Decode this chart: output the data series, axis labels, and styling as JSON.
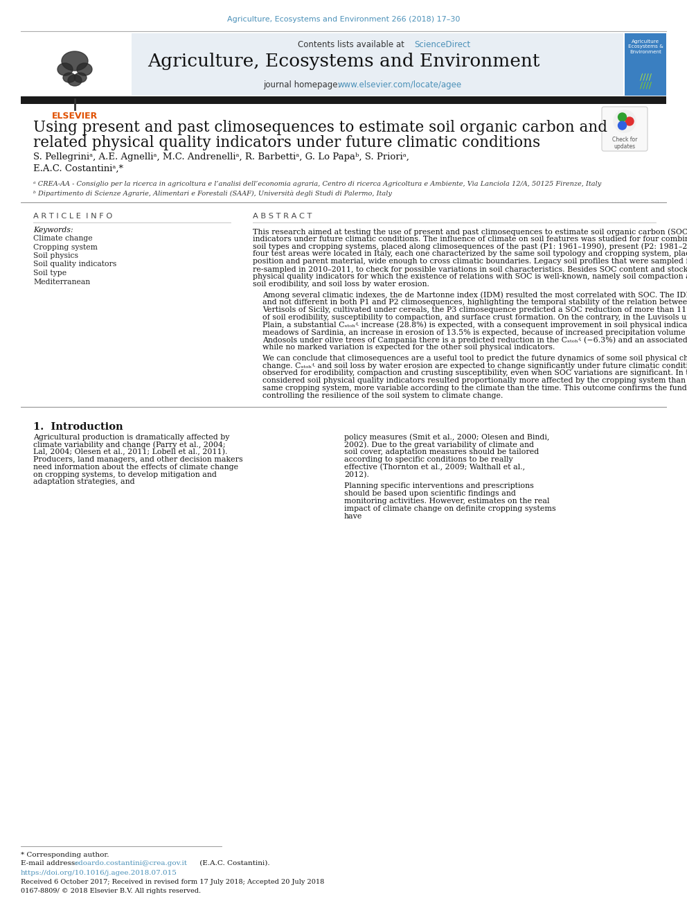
{
  "journal_ref": "Agriculture, Ecosystems and Environment 266 (2018) 17–30",
  "journal_title": "Agriculture, Ecosystems and Environment",
  "contents_text": "Contents lists available at",
  "sciencedirect_text": "ScienceDirect",
  "homepage_text": "journal homepage:",
  "homepage_url": "www.elsevier.com/locate/agee",
  "paper_title_line1": "Using present and past climosequences to estimate soil organic carbon and",
  "paper_title_line2": "related physical quality indicators under future climatic conditions",
  "authors": "S. Pellegriniᵃ, A.E. Agnelliᵃ, M.C. Andrenelliᵃ, R. Barbettiᵃ, G. Lo Papaᵇ, S. Prioriᵃ,",
  "authors2": "E.A.C. Costantiniᵃ,*",
  "affil_a": "ᵃ CREA-AA - Consiglio per la ricerca in agricoltura e l’analisi dell’economia agraria, Centro di ricerca Agricoltura e Ambiente, Via Lanciola 12/A, 50125 Firenze, Italy",
  "affil_b": "ᵇ Dipartimento di Scienze Agrarie, Alimentari e Forestali (SAAF), Università degli Studi di Palermo, Italy",
  "article_info_title": "A R T I C L E  I N F O",
  "keywords_label": "Keywords:",
  "keywords": [
    "Climate change",
    "Cropping system",
    "Soil physics",
    "Soil quality indicators",
    "Soil type",
    "Mediterranean"
  ],
  "abstract_title": "A B S T R A C T",
  "abstract_p1": "This research aimed at testing the use of present and past climosequences to estimate soil organic carbon (SOC) and related physical quality indicators under future climatic conditions. The influence of climate on soil features was studied for four combinations of typical Mediterranean soil types and cropping systems, placed along climosequences of the past (P1: 1961–1990), present (P2: 1981–2010) and future (P3: 2021–2050). The four test areas were located in Italy, each one characterized by the same soil typology and cropping system, placed on similar morphological position and parent material, wide enough to cross climatic boundaries. Legacy soil profiles that were sampled in the P1 time-period were re-sampled in 2010–2011, to check for possible variations in soil characteristics. Besides SOC content and stock (Cₛₜₒₕʵ), we examined some physical quality indicators for which the existence of relations with SOC is well-known, namely soil compaction and soil crusting susceptibility, soil erodibility, and soil loss by water erosion.",
  "abstract_p2": "Among several climatic indexes, the de Martonne index (IDM) resulted the most correlated with SOC. The IDM vs. SOC relationship was significant and not different in both P1 and P2 climosequences, highlighting the temporal stability of the relation between climate and SOC content. In the Vertisols of Sicily, cultivated under cereals, the P3 climosequence predicted a SOC reduction of more than 11%. This will lead to an increase of soil erodibility, susceptibility to compaction, and surface crust formation. On the contrary, in the Luvisols under forage crops of the Po Plain, a substantial Cₛₜₒₕʵ increase (28.8%) is expected, with a consequent improvement in soil physical indicators. For the Luvisols under meadows of Sardinia, an increase in erosion of 13.5% is expected, because of increased precipitation volume (7.4%) and aggressiveness. In the Andosols under olive trees of Campania there is a predicted reduction in the Cₛₜₒₕʵ (−6.3%) and an associated increase in soil loss (4.6%), while no marked variation is expected for the other soil physical indicators.",
  "abstract_p3": "We can conclude that climosequences are a useful tool to predict the future dynamics of some soil physical characteristics affected by climate change. Cₛₜₒₕʵ and soil loss by water erosion are expected to change significantly under future climatic conditions, while minor changes are observed for erodibility, compaction and crusting susceptibility, even when SOC variations are significant. In the climosequences, the considered soil physical quality indicators resulted proportionally more affected by the cropping system than by the climate and, within the same cropping system, more variable according to the climate than the time. This outcome confirms the fundamental role of soil physics in controlling the resilience of the soil system to climate change.",
  "section1_title": "1.  Introduction",
  "intro_p1": "Agricultural production is dramatically affected by climate variability and change (Parry et al., 2004; Lal, 2004; Olesen et al., 2011; Lobell et al., 2011). Producers, land managers, and other decision makers need information about the effects of climate change on cropping systems, to develop mitigation and adaptation strategies, and",
  "intro_p2": "policy measures (Smit et al., 2000; Olesen and Bindi, 2002). Due to the great variability of climate and soil cover, adaptation measures should be tailored according to specific conditions to be really effective (Thornton et al., 2009; Walthall et al., 2012).",
  "intro_p3": "Planning specific interventions and prescriptions should be based upon scientific findings and monitoring activities. However, estimates on the real impact of climate change on definite cropping systems have",
  "footnote_star": "* Corresponding author.",
  "footnote_email_label": "E-mail address:",
  "footnote_email": "edoardo.costantini@crea.gov.it",
  "footnote_email_name": " (E.A.C. Costantini).",
  "doi": "https://doi.org/10.1016/j.agee.2018.07.015",
  "received": "Received 6 October 2017; Received in revised form 17 July 2018; Accepted 20 July 2018",
  "issn": "0167-8809/ © 2018 Elsevier B.V. All rights reserved.",
  "bg_color": "#ffffff",
  "header_bg": "#e8eef4",
  "black_bar_color": "#1a1a1a",
  "journal_ref_color": "#4a90b8",
  "link_color": "#4a90b8",
  "title_color": "#000000",
  "text_color": "#000000",
  "keyword_color": "#333333",
  "section_header_color": "#2c2c2c"
}
